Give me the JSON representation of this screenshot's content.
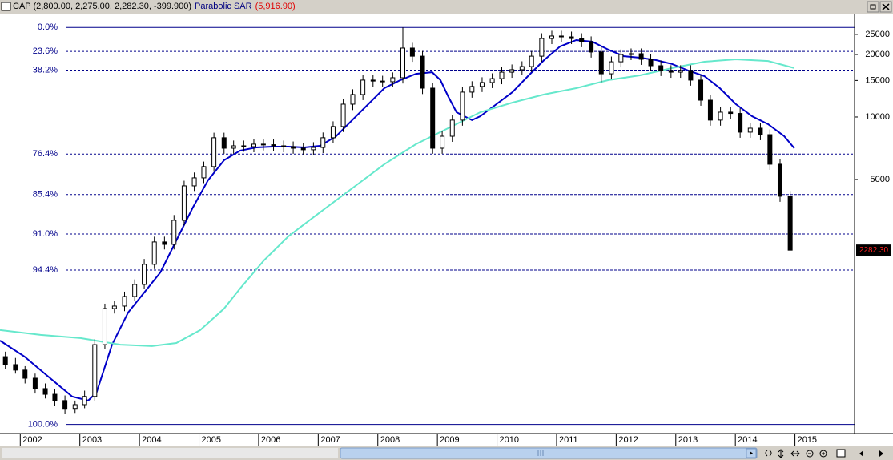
{
  "chart_data": {
    "type": "candlestick",
    "title": "CAP (2,800.00, 2,275.00, 2,282.30, -399.900)",
    "indicator_name": "Parabolic SAR",
    "indicator_value": "(5,916.90)",
    "log": true,
    "xlim": [
      2001.66,
      2016.0
    ],
    "xticks": [
      2002,
      2003,
      2004,
      2005,
      2006,
      2007,
      2008,
      2009,
      2010,
      2011,
      2012,
      2013,
      2014,
      2015
    ],
    "ylim": [
      301,
      31200
    ],
    "yticks": [
      25000,
      20000,
      15000,
      10000,
      5000
    ],
    "up_color": "#ffffff",
    "down_color": "#000000",
    "x": [
      2001.75,
      2001.92,
      2002.08,
      2002.25,
      2002.42,
      2002.58,
      2002.75,
      2002.92,
      2003.08,
      2003.25,
      2003.42,
      2003.58,
      2003.75,
      2003.92,
      2004.08,
      2004.25,
      2004.42,
      2004.58,
      2004.75,
      2004.92,
      2005.08,
      2005.25,
      2005.42,
      2005.58,
      2005.75,
      2005.92,
      2006.08,
      2006.25,
      2006.42,
      2006.58,
      2006.75,
      2006.92,
      2007.08,
      2007.25,
      2007.42,
      2007.58,
      2007.75,
      2007.92,
      2008.08,
      2008.25,
      2008.42,
      2008.58,
      2008.75,
      2008.92,
      2009.08,
      2009.25,
      2009.42,
      2009.58,
      2009.75,
      2009.92,
      2010.08,
      2010.25,
      2010.42,
      2010.58,
      2010.75,
      2010.92,
      2011.08,
      2011.25,
      2011.42,
      2011.58,
      2011.75,
      2011.92,
      2012.08,
      2012.25,
      2012.42,
      2012.58,
      2012.75,
      2012.92,
      2013.08,
      2013.25,
      2013.42,
      2013.58,
      2013.75,
      2013.92,
      2014.08,
      2014.25,
      2014.42,
      2014.58,
      2014.75,
      2014.92
    ],
    "open": [
      700,
      641,
      603,
      551,
      491,
      461,
      430,
      394,
      411,
      450,
      800,
      1194,
      1227,
      1365,
      1560,
      1950,
      2500,
      2432,
      3177,
      4656,
      5090,
      5768,
      7943,
      7070,
      7261,
      7194,
      7396,
      7350,
      7261,
      7194,
      7070,
      6950,
      7129,
      7943,
      8995,
      11530,
      12830,
      15060,
      14900,
      14790,
      15460,
      21480,
      19630,
      13770,
      7070,
      8076,
      9660,
      13180,
      14030,
      14660,
      15310,
      16440,
      16900,
      17500,
      19630,
      23880,
      24550,
      24320,
      23880,
      23070,
      20560,
      16150,
      18450,
      20000,
      20180,
      18970,
      17660,
      16750,
      16440,
      16750,
      15060,
      12050,
      9660,
      10550,
      10400,
      8450,
      8830,
      8220,
      5920,
      4150
    ],
    "high": [
      740,
      690,
      630,
      580,
      520,
      490,
      455,
      430,
      480,
      850,
      1260,
      1300,
      1440,
      1650,
      2070,
      2650,
      2650,
      3370,
      4930,
      5400,
      6100,
      8400,
      8400,
      7700,
      7700,
      7840,
      7840,
      7790,
      7700,
      7620,
      7490,
      7560,
      8420,
      9530,
      12200,
      13600,
      15960,
      15960,
      15800,
      16400,
      27000,
      22770,
      20800,
      14600,
      8560,
      10240,
      13970,
      14870,
      15540,
      16230,
      17430,
      17910,
      18550,
      20800,
      25310,
      26020,
      26020,
      25780,
      25310,
      24450,
      21790,
      19560,
      21200,
      21390,
      21390,
      20110,
      18720,
      17760,
      17760,
      17760,
      15960,
      12770,
      11180,
      11180,
      11020,
      9360,
      9360,
      8710,
      6280,
      4400
    ],
    "low": [
      610,
      580,
      520,
      465,
      440,
      405,
      370,
      375,
      395,
      430,
      760,
      1130,
      1160,
      1300,
      1480,
      1850,
      2300,
      2300,
      3000,
      4400,
      4800,
      5450,
      6650,
      6650,
      6800,
      6760,
      6900,
      6830,
      6760,
      6650,
      6530,
      6530,
      6700,
      7470,
      8460,
      10800,
      12060,
      14000,
      13900,
      13900,
      14500,
      18450,
      12900,
      6650,
      6650,
      7590,
      9080,
      12390,
      13190,
      13780,
      14390,
      15450,
      15890,
      16450,
      18450,
      22450,
      22860,
      22450,
      21690,
      19330,
      14700,
      15180,
      17340,
      18800,
      17830,
      16600,
      15750,
      15450,
      15450,
      14160,
      11330,
      9080,
      9080,
      9780,
      7940,
      7940,
      7730,
      5560,
      3900,
      2275
    ],
    "close": [
      641,
      603,
      551,
      491,
      461,
      430,
      394,
      411,
      450,
      800,
      1194,
      1227,
      1365,
      1560,
      1950,
      2500,
      2432,
      3177,
      4656,
      5090,
      5768,
      7943,
      7070,
      7261,
      7194,
      7396,
      7350,
      7261,
      7194,
      7070,
      6950,
      7129,
      7943,
      8995,
      11530,
      12830,
      15060,
      14900,
      14790,
      15460,
      21480,
      19630,
      13770,
      7070,
      8076,
      9660,
      13180,
      14030,
      14660,
      15310,
      16440,
      16900,
      17500,
      19630,
      23880,
      24550,
      24320,
      23880,
      23070,
      20560,
      16150,
      18450,
      20000,
      20180,
      18970,
      17660,
      16750,
      16440,
      16750,
      15060,
      12050,
      9660,
      10550,
      10400,
      8450,
      8830,
      8220,
      5920,
      4150,
      2282.3
    ],
    "overlays": [
      {
        "color": "#0000c8",
        "x": [
          2001.66,
          2002.07,
          2002.47,
          2002.87,
          2003.14,
          2003.28,
          2003.54,
          2003.81,
          2004.08,
          2004.35,
          2004.62,
          2004.89,
          2005.15,
          2005.42,
          2005.69,
          2005.96,
          2006.23,
          2006.5,
          2006.77,
          2007.03,
          2007.3,
          2007.57,
          2007.84,
          2008.11,
          2008.38,
          2008.64,
          2008.91,
          2009.05,
          2009.18,
          2009.32,
          2009.58,
          2009.72,
          2009.99,
          2010.26,
          2010.52,
          2010.79,
          2011.06,
          2011.33,
          2011.6,
          2011.87,
          2012.13,
          2012.4,
          2012.67,
          2012.94,
          2013.21,
          2013.48,
          2013.74,
          2014.01,
          2014.28,
          2014.55,
          2014.82,
          2014.99
        ],
        "values": [
          837,
          701,
          561,
          450,
          430,
          470,
          800,
          1143,
          1427,
          1782,
          2543,
          3631,
          4955,
          6190,
          6890,
          7129,
          7194,
          7194,
          7129,
          7261,
          8076,
          9660,
          11530,
          13770,
          15060,
          16150,
          16440,
          15060,
          12600,
          10550,
          9660,
          10090,
          11530,
          13180,
          15740,
          18790,
          21880,
          23480,
          23070,
          21090,
          19630,
          19310,
          18790,
          17990,
          16750,
          15740,
          13770,
          11530,
          10090,
          9230,
          8076,
          7070
        ]
      },
      {
        "color": "#66e8cc",
        "x": [
          2001.66,
          2002.34,
          2003.01,
          2003.68,
          2004.21,
          2004.62,
          2005.02,
          2005.42,
          2005.69,
          2006.09,
          2006.5,
          2007.03,
          2007.57,
          2008.11,
          2008.64,
          2009.18,
          2009.72,
          2010.26,
          2010.79,
          2011.33,
          2011.87,
          2012.4,
          2012.94,
          2013.48,
          2014.01,
          2014.55,
          2014.99
        ],
        "values": [
          940,
          891,
          860,
          800,
          787,
          815,
          940,
          1194,
          1493,
          2037,
          2660,
          3473,
          4532,
          5920,
          7396,
          8830,
          10550,
          11730,
          12830,
          13770,
          15060,
          15880,
          17210,
          18460,
          18970,
          18620,
          17210
        ]
      }
    ],
    "fib_levels": [
      {
        "value": 27000,
        "label": "0.0%"
      },
      {
        "value": 20700,
        "label": "23.6%"
      },
      {
        "value": 16810,
        "label": "38.2%"
      },
      {
        "value": 6630,
        "label": "76.4%"
      },
      {
        "value": 4230,
        "label": "85.4%"
      },
      {
        "value": 2730,
        "label": "91.0%"
      },
      {
        "value": 1830,
        "label": "94.4%"
      },
      {
        "value": 330,
        "label": "100.0%"
      }
    ],
    "fib_color": "#00008b",
    "last_price": {
      "value": 2282.3,
      "label": "2282.30"
    }
  }
}
